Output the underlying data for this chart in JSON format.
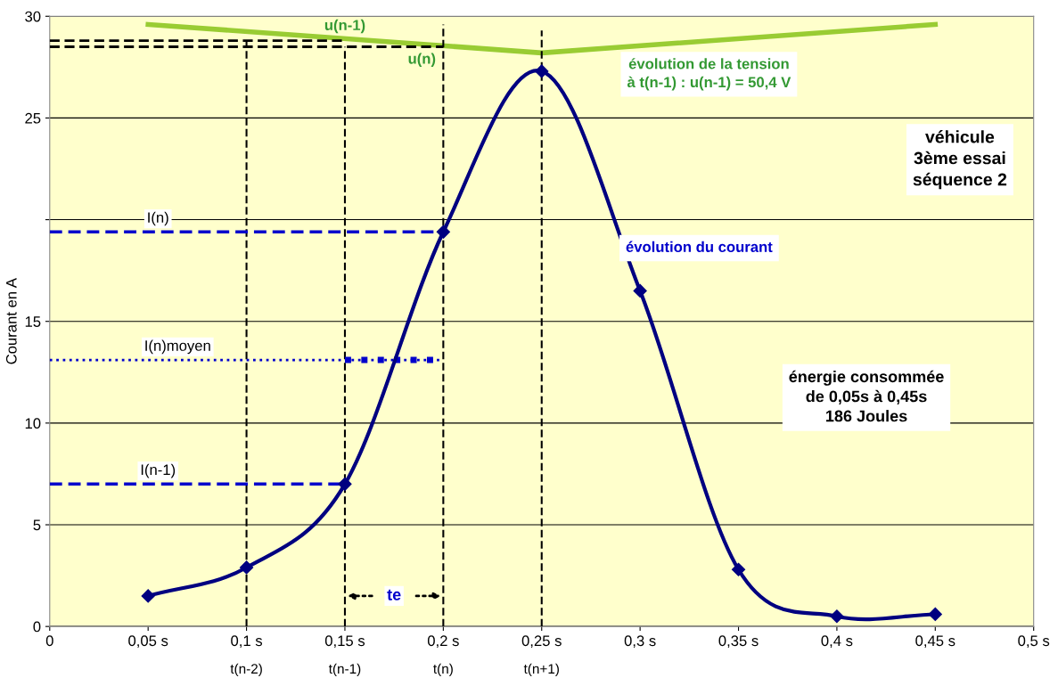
{
  "chart_data": {
    "type": "line",
    "ylabel": "Courant en A",
    "xlim": [
      0,
      0.5
    ],
    "ylim": [
      0,
      30
    ],
    "xticks": [
      {
        "value": 0,
        "label": "0"
      },
      {
        "value": 0.05,
        "label": "0,05 s"
      },
      {
        "value": 0.1,
        "label": "0,1 s"
      },
      {
        "value": 0.15,
        "label": "0,15 s"
      },
      {
        "value": 0.2,
        "label": "0,2 s"
      },
      {
        "value": 0.25,
        "label": "0,25 s"
      },
      {
        "value": 0.3,
        "label": "0,3 s"
      },
      {
        "value": 0.35,
        "label": "0,35 s"
      },
      {
        "value": 0.4,
        "label": "0,4 s"
      },
      {
        "value": 0.45,
        "label": "0,45 s"
      },
      {
        "value": 0.5,
        "label": "0,5 s"
      }
    ],
    "yticks": [
      0,
      5,
      10,
      15,
      {
        "value": 20,
        "label": null
      },
      25,
      30
    ],
    "grid": "y",
    "legend": false,
    "series": [
      {
        "color": "#99cc33",
        "x": [
          0.05,
          0.25,
          0.45
        ],
        "values": [
          29.6,
          28.2,
          29.6
        ],
        "marker": "none",
        "line_style": "solid"
      },
      {
        "color": "#000000",
        "x": [
          0,
          0.15
        ],
        "values": [
          28.8,
          28.8
        ],
        "marker": "none",
        "line_style": "dashed"
      },
      {
        "color": "#000000",
        "x": [
          0,
          0.2
        ],
        "values": [
          28.5,
          28.5
        ],
        "marker": "none",
        "line_style": "dashed"
      },
      {
        "color": "#000000",
        "x": [
          0.1,
          0.1
        ],
        "values": [
          0,
          28.8
        ],
        "marker": "none",
        "line_style": "dashed"
      },
      {
        "color": "#000000",
        "x": [
          0.15,
          0.15
        ],
        "values": [
          0,
          28.5
        ],
        "marker": "none",
        "line_style": "dashed"
      },
      {
        "color": "#000000",
        "x": [
          0.2,
          0.2
        ],
        "values": [
          0,
          29.6
        ],
        "marker": "none",
        "line_style": "dashed"
      },
      {
        "color": "#000000",
        "x": [
          0.25,
          0.25
        ],
        "values": [
          0,
          29.3
        ],
        "marker": "none",
        "line_style": "dashed"
      },
      {
        "color": "#0000cc",
        "x": [
          0,
          0.2
        ],
        "values": [
          19.4,
          19.4
        ],
        "marker": "none",
        "line_style": "dashed"
      },
      {
        "color": "#0000cc",
        "x": [
          0,
          0.15
        ],
        "values": [
          7.0,
          7.0
        ],
        "marker": "none",
        "line_style": "dashed"
      },
      {
        "color": "#0000cc",
        "x": [
          0,
          0.2
        ],
        "values": [
          13.1,
          13.1
        ],
        "marker": "none",
        "line_style": "dotted"
      },
      {
        "color": "#0000cc",
        "x": [
          0.15,
          0.2
        ],
        "values": [
          13.1,
          13.1
        ],
        "marker": "none",
        "line_style": "dotted"
      },
      {
        "color": "#000080",
        "x": [
          0.05,
          0.1,
          0.15,
          0.2,
          0.25,
          0.3,
          0.35,
          0.4,
          0.45
        ],
        "values": [
          1.5,
          2.9,
          7.0,
          19.4,
          27.3,
          16.5,
          2.8,
          0.5,
          0.6
        ],
        "marker": "diamond",
        "line_style": "solid"
      }
    ],
    "annotations": [
      {
        "text": "u(n-1)",
        "x": 0.15,
        "y": 28.8
      },
      {
        "text": "u(n)",
        "x": 0.2,
        "y": 28.5
      },
      {
        "text": "I(n)",
        "x": 0.055,
        "y": 19.4
      },
      {
        "text": "I(n)moyen",
        "x": 0.065,
        "y": 13.1
      },
      {
        "text": "I(n-1)",
        "x": 0.055,
        "y": 7.0
      },
      {
        "text": "te",
        "x": 0.175,
        "y": 1.5
      },
      "évolution du courant",
      "évolution de la tension\nà t(n-1) : u(n-1) = 50,4 V",
      "véhicule\n3ème essai\nséquence 2",
      "énergie consommée\nde 0,05s à 0,45s\n186 Joules",
      {
        "text": "t(n-2)",
        "x": 0.1,
        "y": 0
      },
      {
        "text": "t(n-1)",
        "x": 0.15,
        "y": 0
      },
      {
        "text": "t(n)",
        "x": 0.2,
        "y": 0
      },
      {
        "text": "t(n+1)",
        "x": 0.25,
        "y": 0
      }
    ]
  }
}
